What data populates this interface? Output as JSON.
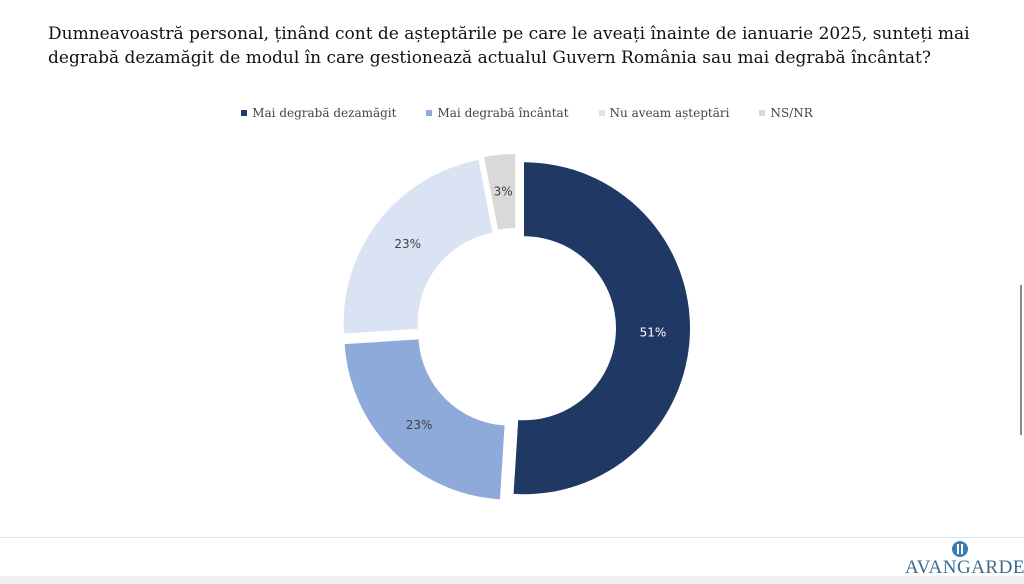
{
  "chart_data": {
    "type": "pie",
    "subtype": "donut",
    "title": "Dumneavoastră personal, ținând cont de așteptările pe care le aveați înainte de ianuarie 2025, sunteți mai degrabă dezamăgit de modul în care gestionează actualul Guvern România sau mai degrabă încântat?",
    "categories": [
      "Mai degrabă dezamăgit",
      "Mai degrabă încântat",
      "Nu aveam așteptări",
      "NS/NR"
    ],
    "values": [
      51,
      23,
      23,
      3
    ],
    "labels": [
      "51%",
      "23%",
      "23%",
      "3%"
    ],
    "colors": [
      "#1f3864",
      "#8eaadb",
      "#dae3f3",
      "#d9d9d9"
    ],
    "legend_position": "top"
  },
  "logo": {
    "text": "AVANGARDE"
  }
}
